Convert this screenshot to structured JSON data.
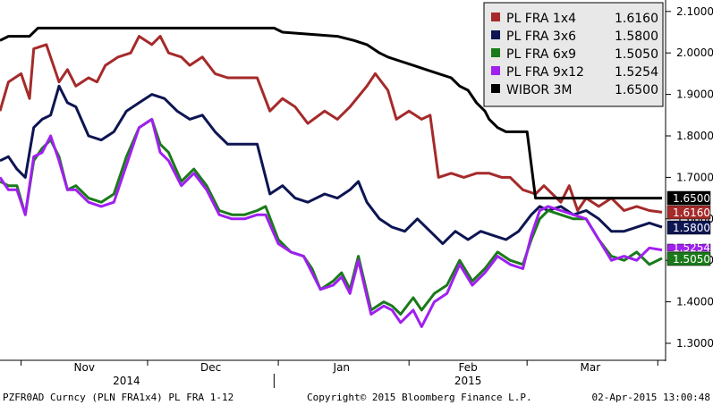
{
  "chart_data": {
    "type": "line",
    "ylim": [
      1.27,
      2.12
    ],
    "yticks": [
      "2.1000",
      "2.0000",
      "1.9000",
      "1.8000",
      "1.7000",
      "1.6000",
      "1.5000",
      "1.4000",
      "1.3000"
    ],
    "y_axis_side": "right",
    "grid": false,
    "legend": "top-right",
    "month_labels": [
      "Nov",
      "Dec",
      "Jan",
      "Feb",
      "Mar"
    ],
    "year_labels": [
      "2014",
      "2015"
    ],
    "x_range": [
      "2014-10-27",
      "2015-04-02"
    ],
    "series": [
      {
        "name": "PL FRA 1x4",
        "legend_value": "1.6160",
        "last_label": "1.6160",
        "color": "#a52a2a",
        "points": [
          [
            "2014-10-27",
            1.86
          ],
          [
            "2014-10-29",
            1.93
          ],
          [
            "2014-11-01",
            1.95
          ],
          [
            "2014-11-03",
            1.89
          ],
          [
            "2014-11-04",
            2.01
          ],
          [
            "2014-11-07",
            2.02
          ],
          [
            "2014-11-10",
            1.93
          ],
          [
            "2014-11-12",
            1.96
          ],
          [
            "2014-11-14",
            1.92
          ],
          [
            "2014-11-17",
            1.94
          ],
          [
            "2014-11-19",
            1.93
          ],
          [
            "2014-11-21",
            1.97
          ],
          [
            "2014-11-24",
            1.99
          ],
          [
            "2014-11-27",
            2.0
          ],
          [
            "2014-11-29",
            2.04
          ],
          [
            "2014-12-02",
            2.02
          ],
          [
            "2014-12-04",
            2.04
          ],
          [
            "2014-12-06",
            2.0
          ],
          [
            "2014-12-09",
            1.99
          ],
          [
            "2014-12-11",
            1.97
          ],
          [
            "2014-12-14",
            1.99
          ],
          [
            "2014-12-17",
            1.95
          ],
          [
            "2014-12-20",
            1.94
          ],
          [
            "2014-12-23",
            1.94
          ],
          [
            "2014-12-27",
            1.94
          ],
          [
            "2014-12-30",
            1.86
          ],
          [
            "2015-01-02",
            1.89
          ],
          [
            "2015-01-05",
            1.87
          ],
          [
            "2015-01-08",
            1.83
          ],
          [
            "2015-01-12",
            1.86
          ],
          [
            "2015-01-15",
            1.84
          ],
          [
            "2015-01-18",
            1.87
          ],
          [
            "2015-01-22",
            1.92
          ],
          [
            "2015-01-24",
            1.95
          ],
          [
            "2015-01-27",
            1.91
          ],
          [
            "2015-01-29",
            1.84
          ],
          [
            "2015-02-01",
            1.86
          ],
          [
            "2015-02-04",
            1.84
          ],
          [
            "2015-02-06",
            1.85
          ],
          [
            "2015-02-08",
            1.7
          ],
          [
            "2015-02-11",
            1.71
          ],
          [
            "2015-02-14",
            1.7
          ],
          [
            "2015-02-17",
            1.71
          ],
          [
            "2015-02-20",
            1.71
          ],
          [
            "2015-02-23",
            1.7
          ],
          [
            "2015-02-25",
            1.7
          ],
          [
            "2015-02-28",
            1.67
          ],
          [
            "2015-03-03",
            1.66
          ],
          [
            "2015-03-05",
            1.68
          ],
          [
            "2015-03-07",
            1.66
          ],
          [
            "2015-03-09",
            1.64
          ],
          [
            "2015-03-11",
            1.68
          ],
          [
            "2015-03-13",
            1.62
          ],
          [
            "2015-03-15",
            1.65
          ],
          [
            "2015-03-18",
            1.63
          ],
          [
            "2015-03-21",
            1.65
          ],
          [
            "2015-03-24",
            1.62
          ],
          [
            "2015-03-27",
            1.63
          ],
          [
            "2015-03-30",
            1.62
          ],
          [
            "2015-04-02",
            1.616
          ]
        ]
      },
      {
        "name": "PL FRA 3x6",
        "legend_value": "1.5800",
        "last_label": "1.5800",
        "color": "#0d1552",
        "points": [
          [
            "2014-10-27",
            1.74
          ],
          [
            "2014-10-29",
            1.75
          ],
          [
            "2014-10-31",
            1.72
          ],
          [
            "2014-11-02",
            1.7
          ],
          [
            "2014-11-04",
            1.82
          ],
          [
            "2014-11-06",
            1.84
          ],
          [
            "2014-11-08",
            1.85
          ],
          [
            "2014-11-10",
            1.92
          ],
          [
            "2014-11-12",
            1.88
          ],
          [
            "2014-11-14",
            1.87
          ],
          [
            "2014-11-17",
            1.8
          ],
          [
            "2014-11-20",
            1.79
          ],
          [
            "2014-11-23",
            1.81
          ],
          [
            "2014-11-26",
            1.86
          ],
          [
            "2014-11-29",
            1.88
          ],
          [
            "2014-12-02",
            1.9
          ],
          [
            "2014-12-05",
            1.89
          ],
          [
            "2014-12-08",
            1.86
          ],
          [
            "2014-12-11",
            1.84
          ],
          [
            "2014-12-14",
            1.85
          ],
          [
            "2014-12-17",
            1.81
          ],
          [
            "2014-12-20",
            1.78
          ],
          [
            "2014-12-24",
            1.78
          ],
          [
            "2014-12-27",
            1.78
          ],
          [
            "2014-12-30",
            1.66
          ],
          [
            "2015-01-02",
            1.68
          ],
          [
            "2015-01-05",
            1.65
          ],
          [
            "2015-01-08",
            1.64
          ],
          [
            "2015-01-12",
            1.66
          ],
          [
            "2015-01-15",
            1.65
          ],
          [
            "2015-01-18",
            1.67
          ],
          [
            "2015-01-20",
            1.69
          ],
          [
            "2015-01-22",
            1.64
          ],
          [
            "2015-01-25",
            1.6
          ],
          [
            "2015-01-28",
            1.58
          ],
          [
            "2015-01-31",
            1.57
          ],
          [
            "2015-02-03",
            1.6
          ],
          [
            "2015-02-06",
            1.57
          ],
          [
            "2015-02-09",
            1.54
          ],
          [
            "2015-02-12",
            1.57
          ],
          [
            "2015-02-15",
            1.55
          ],
          [
            "2015-02-18",
            1.57
          ],
          [
            "2015-02-21",
            1.56
          ],
          [
            "2015-02-24",
            1.55
          ],
          [
            "2015-02-27",
            1.57
          ],
          [
            "2015-03-02",
            1.61
          ],
          [
            "2015-03-04",
            1.63
          ],
          [
            "2015-03-06",
            1.62
          ],
          [
            "2015-03-09",
            1.63
          ],
          [
            "2015-03-12",
            1.61
          ],
          [
            "2015-03-15",
            1.62
          ],
          [
            "2015-03-18",
            1.6
          ],
          [
            "2015-03-21",
            1.57
          ],
          [
            "2015-03-24",
            1.57
          ],
          [
            "2015-03-27",
            1.58
          ],
          [
            "2015-03-30",
            1.59
          ],
          [
            "2015-04-02",
            1.58
          ]
        ]
      },
      {
        "name": "PL FRA 6x9",
        "legend_value": "1.5050",
        "last_label": "1.5050",
        "color": "#1a7a1a",
        "points": [
          [
            "2014-10-27",
            1.69
          ],
          [
            "2014-10-29",
            1.68
          ],
          [
            "2014-10-31",
            1.68
          ],
          [
            "2014-11-02",
            1.61
          ],
          [
            "2014-11-04",
            1.74
          ],
          [
            "2014-11-06",
            1.77
          ],
          [
            "2014-11-08",
            1.79
          ],
          [
            "2014-11-10",
            1.75
          ],
          [
            "2014-11-12",
            1.67
          ],
          [
            "2014-11-14",
            1.68
          ],
          [
            "2014-11-17",
            1.65
          ],
          [
            "2014-11-20",
            1.64
          ],
          [
            "2014-11-23",
            1.66
          ],
          [
            "2014-11-26",
            1.75
          ],
          [
            "2014-11-29",
            1.82
          ],
          [
            "2014-12-02",
            1.84
          ],
          [
            "2014-12-04",
            1.78
          ],
          [
            "2014-12-06",
            1.76
          ],
          [
            "2014-12-09",
            1.69
          ],
          [
            "2014-12-12",
            1.72
          ],
          [
            "2014-12-15",
            1.68
          ],
          [
            "2014-12-18",
            1.62
          ],
          [
            "2014-12-21",
            1.61
          ],
          [
            "2014-12-24",
            1.61
          ],
          [
            "2014-12-27",
            1.62
          ],
          [
            "2014-12-29",
            1.63
          ],
          [
            "2015-01-01",
            1.55
          ],
          [
            "2015-01-04",
            1.52
          ],
          [
            "2015-01-07",
            1.51
          ],
          [
            "2015-01-09",
            1.48
          ],
          [
            "2015-01-11",
            1.43
          ],
          [
            "2015-01-14",
            1.45
          ],
          [
            "2015-01-16",
            1.47
          ],
          [
            "2015-01-18",
            1.43
          ],
          [
            "2015-01-20",
            1.51
          ],
          [
            "2015-01-23",
            1.38
          ],
          [
            "2015-01-26",
            1.4
          ],
          [
            "2015-01-28",
            1.39
          ],
          [
            "2015-01-30",
            1.37
          ],
          [
            "2015-02-02",
            1.41
          ],
          [
            "2015-02-04",
            1.38
          ],
          [
            "2015-02-07",
            1.42
          ],
          [
            "2015-02-10",
            1.44
          ],
          [
            "2015-02-13",
            1.5
          ],
          [
            "2015-02-16",
            1.45
          ],
          [
            "2015-02-19",
            1.48
          ],
          [
            "2015-02-22",
            1.52
          ],
          [
            "2015-02-25",
            1.5
          ],
          [
            "2015-02-28",
            1.49
          ],
          [
            "2015-03-02",
            1.55
          ],
          [
            "2015-03-04",
            1.6
          ],
          [
            "2015-03-06",
            1.62
          ],
          [
            "2015-03-09",
            1.61
          ],
          [
            "2015-03-12",
            1.6
          ],
          [
            "2015-03-15",
            1.6
          ],
          [
            "2015-03-18",
            1.55
          ],
          [
            "2015-03-21",
            1.51
          ],
          [
            "2015-03-24",
            1.5
          ],
          [
            "2015-03-27",
            1.52
          ],
          [
            "2015-03-30",
            1.49
          ],
          [
            "2015-04-02",
            1.505
          ]
        ]
      },
      {
        "name": "PL FRA 9x12",
        "legend_value": "1.5254",
        "last_label": "1.5254",
        "color": "#a020f0",
        "points": [
          [
            "2014-10-27",
            1.7
          ],
          [
            "2014-10-29",
            1.67
          ],
          [
            "2014-10-31",
            1.67
          ],
          [
            "2014-11-02",
            1.61
          ],
          [
            "2014-11-04",
            1.75
          ],
          [
            "2014-11-06",
            1.76
          ],
          [
            "2014-11-08",
            1.8
          ],
          [
            "2014-11-10",
            1.74
          ],
          [
            "2014-11-12",
            1.67
          ],
          [
            "2014-11-14",
            1.67
          ],
          [
            "2014-11-17",
            1.64
          ],
          [
            "2014-11-20",
            1.63
          ],
          [
            "2014-11-23",
            1.64
          ],
          [
            "2014-11-26",
            1.73
          ],
          [
            "2014-11-29",
            1.82
          ],
          [
            "2014-12-02",
            1.84
          ],
          [
            "2014-12-04",
            1.76
          ],
          [
            "2014-12-06",
            1.74
          ],
          [
            "2014-12-09",
            1.68
          ],
          [
            "2014-12-12",
            1.71
          ],
          [
            "2014-12-15",
            1.67
          ],
          [
            "2014-12-18",
            1.61
          ],
          [
            "2014-12-21",
            1.6
          ],
          [
            "2014-12-24",
            1.6
          ],
          [
            "2014-12-27",
            1.61
          ],
          [
            "2014-12-29",
            1.61
          ],
          [
            "2015-01-01",
            1.54
          ],
          [
            "2015-01-04",
            1.52
          ],
          [
            "2015-01-07",
            1.51
          ],
          [
            "2015-01-09",
            1.47
          ],
          [
            "2015-01-11",
            1.43
          ],
          [
            "2015-01-14",
            1.44
          ],
          [
            "2015-01-16",
            1.46
          ],
          [
            "2015-01-18",
            1.42
          ],
          [
            "2015-01-20",
            1.5
          ],
          [
            "2015-01-23",
            1.37
          ],
          [
            "2015-01-26",
            1.39
          ],
          [
            "2015-01-28",
            1.38
          ],
          [
            "2015-01-30",
            1.35
          ],
          [
            "2015-02-02",
            1.38
          ],
          [
            "2015-02-04",
            1.34
          ],
          [
            "2015-02-07",
            1.4
          ],
          [
            "2015-02-10",
            1.42
          ],
          [
            "2015-02-13",
            1.49
          ],
          [
            "2015-02-16",
            1.44
          ],
          [
            "2015-02-19",
            1.47
          ],
          [
            "2015-02-22",
            1.51
          ],
          [
            "2015-02-25",
            1.49
          ],
          [
            "2015-02-28",
            1.48
          ],
          [
            "2015-03-02",
            1.56
          ],
          [
            "2015-03-04",
            1.62
          ],
          [
            "2015-03-06",
            1.63
          ],
          [
            "2015-03-09",
            1.62
          ],
          [
            "2015-03-12",
            1.61
          ],
          [
            "2015-03-15",
            1.6
          ],
          [
            "2015-03-18",
            1.55
          ],
          [
            "2015-03-21",
            1.5
          ],
          [
            "2015-03-24",
            1.51
          ],
          [
            "2015-03-27",
            1.5
          ],
          [
            "2015-03-30",
            1.53
          ],
          [
            "2015-04-02",
            1.525
          ]
        ]
      },
      {
        "name": "WIBOR 3M",
        "legend_value": "1.6500",
        "last_label": "1.6500",
        "color": "#000000",
        "points": [
          [
            "2014-10-27",
            2.03
          ],
          [
            "2014-10-29",
            2.04
          ],
          [
            "2014-11-03",
            2.04
          ],
          [
            "2014-11-05",
            2.06
          ],
          [
            "2014-12-31",
            2.06
          ],
          [
            "2015-01-02",
            2.05
          ],
          [
            "2015-01-15",
            2.04
          ],
          [
            "2015-01-19",
            2.03
          ],
          [
            "2015-01-22",
            2.02
          ],
          [
            "2015-01-25",
            2.0
          ],
          [
            "2015-01-27",
            1.99
          ],
          [
            "2015-01-30",
            1.98
          ],
          [
            "2015-02-02",
            1.97
          ],
          [
            "2015-02-05",
            1.96
          ],
          [
            "2015-02-08",
            1.95
          ],
          [
            "2015-02-11",
            1.94
          ],
          [
            "2015-02-13",
            1.92
          ],
          [
            "2015-02-15",
            1.91
          ],
          [
            "2015-02-17",
            1.88
          ],
          [
            "2015-02-19",
            1.86
          ],
          [
            "2015-02-20",
            1.84
          ],
          [
            "2015-02-22",
            1.82
          ],
          [
            "2015-02-24",
            1.81
          ],
          [
            "2015-03-01",
            1.81
          ],
          [
            "2015-03-03",
            1.65
          ],
          [
            "2015-04-02",
            1.65
          ]
        ]
      }
    ]
  },
  "footer": {
    "left": "PZFR0AD Curncy (PLN FRA1x4) PL FRA 1-12",
    "center": "Copyright© 2015 Bloomberg Finance L.P.",
    "right": "02-Apr-2015 13:00:48"
  }
}
